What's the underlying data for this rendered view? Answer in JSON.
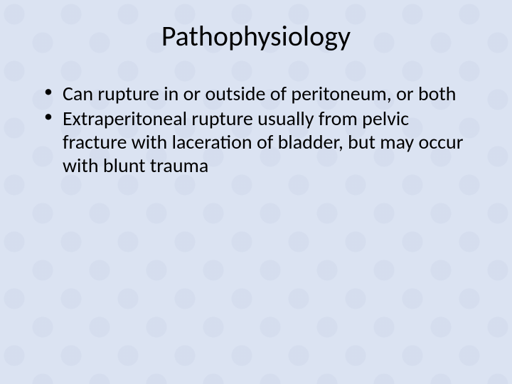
{
  "slide": {
    "title": "Pathophysiology",
    "bullets": [
      "Can rupture in or outside of peritoneum, or both",
      "Extraperitoneal rupture usually from pelvic fracture with laceration of bladder, but may occur with blunt trauma"
    ],
    "style": {
      "background_color": "#dbe3f2",
      "pattern_color": "#c8d2e6",
      "title_fontsize": 40,
      "title_color": "#000000",
      "bullet_fontsize": 28,
      "bullet_color": "#000000",
      "font_family": "Calibri"
    }
  }
}
